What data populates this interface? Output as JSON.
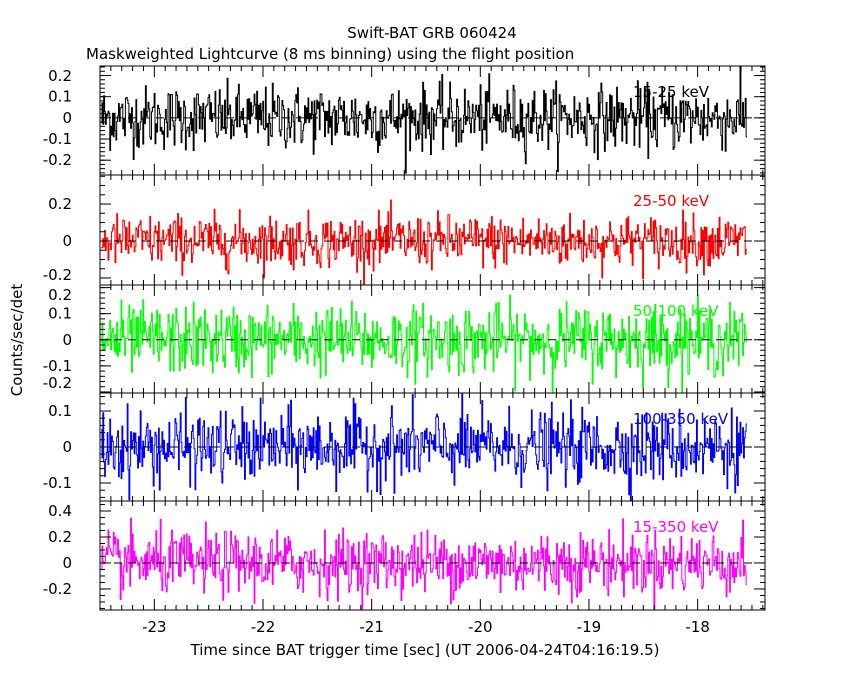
{
  "chart_data": {
    "type": "line",
    "title": "Swift-BAT GRB 060424",
    "subtitle": "Maskweighted Lightcurve (8 ms binning) using the flight position",
    "xlabel": "Time since BAT trigger time [sec] (UT 2006-04-24T04:16:19.5)",
    "ylabel": "Counts/sec/det",
    "xlim": [
      -23.5,
      -17.38
    ],
    "x_ticks": [
      "-23",
      "-22",
      "-21",
      "-20",
      "-19",
      "-18"
    ],
    "bin_size_sec": 0.008,
    "data_range": [
      -23.49,
      -17.55
    ],
    "panels": [
      {
        "name": "15-25 keV",
        "color": "#000000",
        "ylim": [
          -0.27,
          0.245
        ],
        "y_ticks": [
          "0.2",
          "0.1",
          "0",
          "-0.1",
          "-0.2"
        ],
        "tick_values": [
          0.2,
          0.1,
          0,
          -0.1,
          -0.2
        ],
        "minor": 0.02,
        "noise_std": 0.075
      },
      {
        "name": "25-50 keV",
        "color": "#ff0000",
        "ylim": [
          -0.238,
          0.357
        ],
        "y_ticks": [
          "0.2",
          "0",
          "-0.2"
        ],
        "tick_values": [
          0.2,
          0,
          -0.2
        ],
        "minor": 0.05,
        "noise_std": 0.07
      },
      {
        "name": "50-100 keV",
        "color": "#00ff00",
        "ylim": [
          -0.204,
          0.21
        ],
        "y_ticks": [
          "0.2",
          "0.1",
          "0",
          "-0.1",
          "-0.2"
        ],
        "tick_values": [
          0.2,
          0.1,
          0,
          -0.1,
          -0.2
        ],
        "minor": 0.02,
        "noise_std": 0.065
      },
      {
        "name": "100-350 keV",
        "color": "#0000ff",
        "ylim": [
          -0.15,
          0.15
        ],
        "y_ticks": [
          "0.1",
          "0",
          "-0.1"
        ],
        "tick_values": [
          0.1,
          0,
          -0.1
        ],
        "minor": 0.02,
        "noise_std": 0.05
      },
      {
        "name": "15-350 keV",
        "color": "#ff00ff",
        "ylim": [
          -0.362,
          0.477
        ],
        "y_ticks": [
          "0.4",
          "0.2",
          "0",
          "-0.2"
        ],
        "tick_values": [
          0.4,
          0.2,
          0,
          -0.2
        ],
        "minor": 0.05,
        "noise_std": 0.12
      }
    ]
  }
}
